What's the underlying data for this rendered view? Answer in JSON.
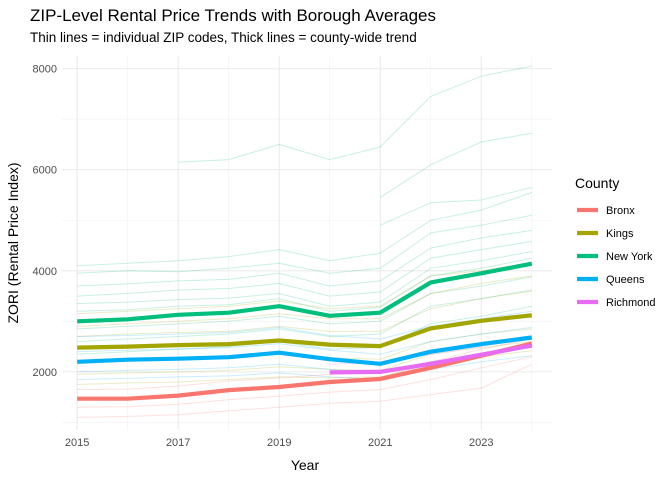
{
  "chart_data": {
    "type": "line",
    "title": "ZIP-Level Rental Price Trends with Borough Averages",
    "subtitle": "Thin lines = individual ZIP codes, Thick lines = county-wide trend",
    "xlabel": "Year",
    "ylabel": "ZORI (Rental Price Index)",
    "xlim": [
      2014.7,
      2024.4
    ],
    "ylim": [
      850,
      8250
    ],
    "x_ticks": [
      2015,
      2017,
      2019,
      2021,
      2023
    ],
    "y_ticks": [
      2000,
      4000,
      6000,
      8000
    ],
    "x_tick_labels": [
      "2015",
      "2017",
      "2019",
      "2021",
      "2023"
    ],
    "y_tick_labels": [
      "2000",
      "4000",
      "6000",
      "8000"
    ],
    "grid": true,
    "legend_title": "County",
    "legend_position": "right",
    "series": [
      {
        "name": "Bronx",
        "color": "#F8766D",
        "x": [
          2015,
          2016,
          2017,
          2018,
          2019,
          2020,
          2021,
          2022,
          2023,
          2024
        ],
        "values": [
          1470,
          1470,
          1530,
          1640,
          1700,
          1800,
          1860,
          2080,
          2320,
          2560
        ]
      },
      {
        "name": "Kings",
        "color": "#A3A500",
        "x": [
          2015,
          2016,
          2017,
          2018,
          2019,
          2020,
          2021,
          2022,
          2023,
          2024
        ],
        "values": [
          2480,
          2500,
          2530,
          2550,
          2620,
          2540,
          2510,
          2860,
          3010,
          3120
        ]
      },
      {
        "name": "New York",
        "color": "#00BF7D",
        "x": [
          2015,
          2016,
          2017,
          2018,
          2019,
          2020,
          2021,
          2022,
          2023,
          2024
        ],
        "values": [
          3000,
          3040,
          3130,
          3170,
          3300,
          3110,
          3170,
          3770,
          3950,
          4140
        ]
      },
      {
        "name": "Queens",
        "color": "#00B0F6",
        "x": [
          2015,
          2016,
          2017,
          2018,
          2019,
          2020,
          2021,
          2022,
          2023,
          2024
        ],
        "values": [
          2200,
          2240,
          2260,
          2290,
          2380,
          2250,
          2160,
          2400,
          2550,
          2680
        ]
      },
      {
        "name": "Richmond",
        "color": "#E76BF3",
        "x": [
          2020,
          2021,
          2022,
          2023,
          2024
        ],
        "values": [
          1990,
          2000,
          2160,
          2340,
          2520
        ]
      }
    ],
    "zip_lines": [
      {
        "county": "New York",
        "x": [
          2017,
          2018,
          2019,
          2020,
          2021,
          2022,
          2023,
          2024
        ],
        "values": [
          6150,
          6200,
          6500,
          6200,
          6450,
          7450,
          7850,
          8050
        ]
      },
      {
        "county": "New York",
        "x": [
          2021,
          2022,
          2023,
          2024
        ],
        "values": [
          5450,
          6100,
          6550,
          6720
        ]
      },
      {
        "county": "New York",
        "x": [
          2021,
          2022,
          2023,
          2024
        ],
        "values": [
          4900,
          5350,
          5400,
          5650
        ]
      },
      {
        "county": "New York",
        "x": [
          2015,
          2016,
          2017,
          2018,
          2019,
          2020,
          2021,
          2022,
          2023,
          2024
        ],
        "values": [
          4100,
          4150,
          4200,
          4280,
          4420,
          4200,
          4350,
          5000,
          5200,
          5550
        ]
      },
      {
        "county": "New York",
        "x": [
          2015,
          2016,
          2017,
          2018,
          2019,
          2020,
          2021,
          2022,
          2023,
          2024
        ],
        "values": [
          3950,
          4000,
          3980,
          4050,
          4150,
          3950,
          4050,
          4750,
          4900,
          5100
        ]
      },
      {
        "county": "New York",
        "x": [
          2015,
          2016,
          2017,
          2018,
          2019,
          2020,
          2021,
          2022,
          2023,
          2024
        ],
        "values": [
          3700,
          3740,
          3800,
          3830,
          3950,
          3700,
          3800,
          4450,
          4650,
          4800
        ]
      },
      {
        "county": "New York",
        "x": [
          2015,
          2016,
          2017,
          2018,
          2019,
          2020,
          2021,
          2022,
          2023,
          2024
        ],
        "values": [
          3500,
          3550,
          3620,
          3650,
          3750,
          3500,
          3580,
          4250,
          4420,
          4580
        ]
      },
      {
        "county": "New York",
        "x": [
          2015,
          2016,
          2017,
          2018,
          2019,
          2020,
          2021,
          2022,
          2023,
          2024
        ],
        "values": [
          3350,
          3380,
          3430,
          3460,
          3550,
          3300,
          3380,
          4050,
          4200,
          4380
        ]
      },
      {
        "county": "New York",
        "x": [
          2015,
          2016,
          2017,
          2018,
          2019,
          2020,
          2021,
          2022,
          2023,
          2024
        ],
        "values": [
          3200,
          3230,
          3300,
          3330,
          3450,
          3200,
          3280,
          3900,
          4050,
          4250
        ]
      },
      {
        "county": "New York",
        "x": [
          2015,
          2016,
          2017,
          2018,
          2019,
          2020,
          2021,
          2022,
          2023,
          2024
        ],
        "values": [
          2850,
          2900,
          2950,
          3000,
          3100,
          2950,
          3000,
          3550,
          3700,
          3880
        ]
      },
      {
        "county": "New York",
        "x": [
          2015,
          2016,
          2017,
          2018,
          2019,
          2020,
          2021,
          2022,
          2023,
          2024
        ],
        "values": [
          2600,
          2650,
          2700,
          2750,
          2850,
          2700,
          2750,
          3300,
          3450,
          3620
        ]
      },
      {
        "county": "New York",
        "x": [
          2015,
          2016,
          2017,
          2018,
          2019,
          2020,
          2021,
          2022,
          2023,
          2024
        ],
        "values": [
          2350,
          2400,
          2450,
          2500,
          2600,
          2450,
          2480,
          2950,
          3100,
          3300
        ]
      },
      {
        "county": "Kings",
        "x": [
          2015,
          2016,
          2017,
          2018,
          2019,
          2020,
          2021,
          2022,
          2023,
          2024
        ],
        "values": [
          3150,
          3200,
          3250,
          3300,
          3400,
          3250,
          3300,
          3900,
          4000,
          4150
        ]
      },
      {
        "county": "Kings",
        "x": [
          2015,
          2016,
          2017,
          2018,
          2019,
          2020,
          2021,
          2022,
          2023,
          2024
        ],
        "values": [
          2900,
          2950,
          3000,
          3050,
          3150,
          3050,
          3050,
          3550,
          3750,
          3900
        ]
      },
      {
        "county": "Kings",
        "x": [
          2015,
          2016,
          2017,
          2018,
          2019,
          2020,
          2021,
          2022,
          2023,
          2024
        ],
        "values": [
          2700,
          2750,
          2780,
          2800,
          2900,
          2800,
          2800,
          3250,
          3450,
          3600
        ]
      },
      {
        "county": "Kings",
        "x": [
          2015,
          2016,
          2017,
          2018,
          2019,
          2020,
          2021,
          2022,
          2023,
          2024
        ],
        "values": [
          2450,
          2480,
          2500,
          2520,
          2600,
          2500,
          2480,
          2850,
          3000,
          3150
        ]
      },
      {
        "county": "Kings",
        "x": [
          2015,
          2016,
          2017,
          2018,
          2019,
          2020,
          2021,
          2022,
          2023,
          2024
        ],
        "values": [
          2200,
          2230,
          2260,
          2280,
          2350,
          2280,
          2250,
          2600,
          2750,
          2850
        ]
      },
      {
        "county": "Kings",
        "x": [
          2015,
          2016,
          2017,
          2018,
          2019,
          2020,
          2021,
          2022,
          2023,
          2024
        ],
        "values": [
          1950,
          1980,
          2000,
          2030,
          2100,
          2050,
          2030,
          2350,
          2480,
          2600
        ]
      },
      {
        "county": "Kings",
        "x": [
          2015,
          2016,
          2017,
          2018,
          2019,
          2020,
          2021,
          2022,
          2023,
          2024
        ],
        "values": [
          1750,
          1780,
          1800,
          1850,
          1900,
          1880,
          1900,
          2150,
          2300,
          2420
        ]
      },
      {
        "county": "Queens",
        "x": [
          2015,
          2016,
          2017,
          2018,
          2019,
          2020,
          2021,
          2022,
          2023,
          2024
        ],
        "values": [
          2700,
          2720,
          2750,
          2780,
          2880,
          2720,
          2650,
          2900,
          3050,
          3200
        ]
      },
      {
        "county": "Queens",
        "x": [
          2015,
          2016,
          2017,
          2018,
          2019,
          2020,
          2021,
          2022,
          2023,
          2024
        ],
        "values": [
          2400,
          2430,
          2450,
          2480,
          2560,
          2430,
          2350,
          2600,
          2750,
          2880
        ]
      },
      {
        "county": "Queens",
        "x": [
          2015,
          2016,
          2017,
          2018,
          2019,
          2020,
          2021,
          2022,
          2023,
          2024
        ],
        "values": [
          2000,
          2030,
          2050,
          2080,
          2150,
          2050,
          1980,
          2200,
          2350,
          2480
        ]
      },
      {
        "county": "Queens",
        "x": [
          2015,
          2016,
          2017,
          2018,
          2019,
          2020,
          2021,
          2022,
          2023,
          2024
        ],
        "values": [
          1850,
          1870,
          1900,
          1920,
          1980,
          1900,
          1850,
          2050,
          2200,
          2320
        ]
      },
      {
        "county": "Bronx",
        "x": [
          2015,
          2016,
          2017,
          2018,
          2019,
          2020,
          2021,
          2022,
          2023,
          2024
        ],
        "values": [
          1650,
          1660,
          1720,
          1820,
          1880,
          1950,
          2000,
          2200,
          2450,
          2650
        ]
      },
      {
        "county": "Bronx",
        "x": [
          2015,
          2016,
          2017,
          2018,
          2019,
          2020,
          2021,
          2022,
          2023,
          2024
        ],
        "values": [
          1300,
          1310,
          1360,
          1450,
          1520,
          1600,
          1650,
          1850,
          2080,
          2300
        ]
      },
      {
        "county": "Bronx",
        "x": [
          2015,
          2016,
          2017,
          2018,
          2019,
          2020,
          2021,
          2022,
          2023,
          2024
        ],
        "values": [
          1100,
          1120,
          1150,
          1230,
          1300,
          1380,
          1420,
          1550,
          1680,
          2150
        ]
      },
      {
        "county": "Richmond",
        "x": [
          2020,
          2021,
          2022,
          2023,
          2024
        ],
        "values": [
          2150,
          2180,
          2350,
          2500,
          2700
        ]
      }
    ]
  }
}
